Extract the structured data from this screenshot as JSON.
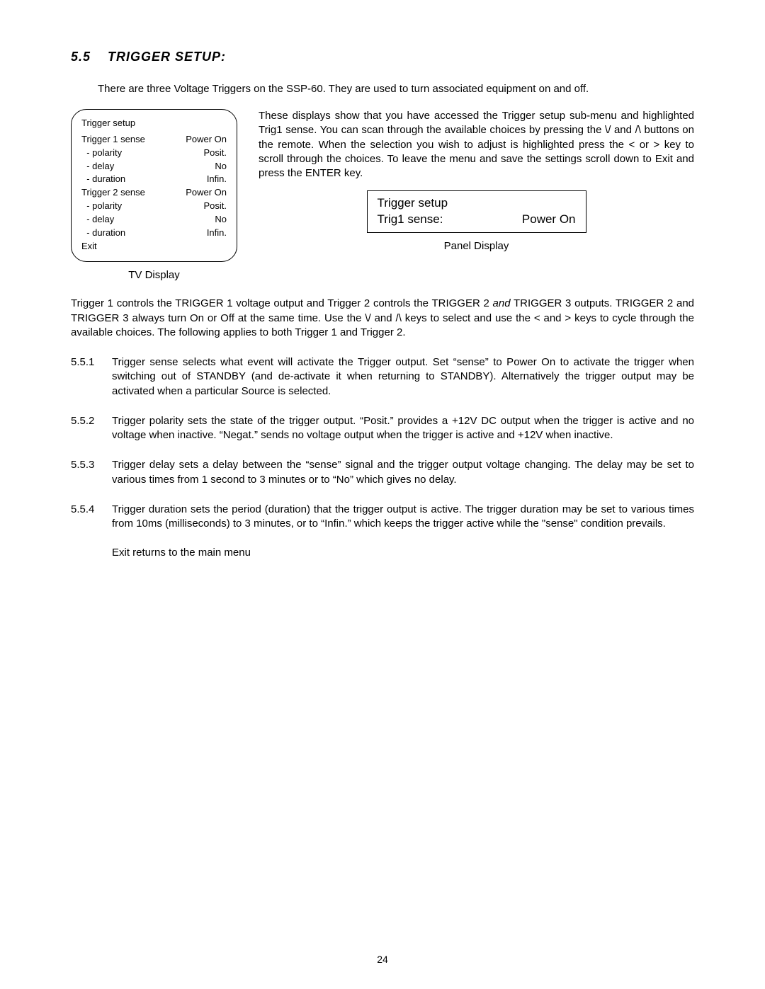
{
  "heading": {
    "num": "5.5",
    "title": "TRIGGER SETUP:"
  },
  "intro": "There are three Voltage Triggers on the SSP-60. They are used to turn associated equipment on and off.",
  "tvDisplay": {
    "title": "Trigger setup",
    "rows": [
      {
        "l": "Trigger 1 sense",
        "r": "Power On"
      },
      {
        "l": "  - polarity",
        "r": "Posit."
      },
      {
        "l": "  - delay",
        "r": "No"
      },
      {
        "l": "  - duration",
        "r": "Infin."
      },
      {
        "l": "Trigger 2 sense",
        "r": "Power On"
      },
      {
        "l": "  - polarity",
        "r": "Posit."
      },
      {
        "l": "  - delay",
        "r": "No"
      },
      {
        "l": "  - duration",
        "r": "Infin."
      },
      {
        "l": "Exit",
        "r": ""
      }
    ],
    "caption": "TV Display"
  },
  "rightPara": "These displays show that you have accessed the Trigger setup sub-menu and highlighted Trig1 sense.  You can scan through the available choices by pressing the \\/ and /\\ buttons on the remote. When the selection you wish to adjust is highlighted press the <  or >  key to scroll through the choices. To leave the menu and save the settings scroll down to Exit and press the ENTER key.",
  "panelDisplay": {
    "line1": "Trigger setup",
    "line2l": "Trig1 sense:",
    "line2r": "Power On",
    "caption": "Panel Display"
  },
  "bodyPara": {
    "pre": "Trigger 1 controls the TRIGGER 1 voltage output and Trigger 2 controls the TRIGGER 2 ",
    "italic": "and",
    "post": " TRIGGER 3 outputs. TRIGGER 2 and TRIGGER 3 always turn On or Off at the same time. Use the \\/ and /\\ keys to select and use the <  and >  keys to cycle through the available choices. The following applies to both Trigger 1 and Trigger 2."
  },
  "subs": [
    {
      "num": "5.5.1",
      "text": "Trigger sense selects what event will activate the Trigger output. Set “sense” to Power On to activate the trigger when switching out of STANDBY (and de-activate it when returning to STANDBY). Alternatively the trigger output may be activated when a particular Source is selected."
    },
    {
      "num": "5.5.2",
      "text": "Trigger polarity sets the state of the trigger output. “Posit.” provides a +12V DC output when the trigger is active and no voltage when inactive. “Negat.” sends no voltage output when the trigger is active and +12V when inactive."
    },
    {
      "num": "5.5.3",
      "text": "Trigger delay sets a delay between the “sense” signal and the trigger output voltage changing. The delay may be set to various times from 1 second to 3 minutes or to “No” which gives no delay."
    },
    {
      "num": "5.5.4",
      "text": "Trigger duration sets the period (duration) that the trigger output is active. The trigger duration may be set to various times from 10ms (milliseconds) to 3 minutes, or to “Infin.” which keeps the trigger active while the \"sense\" condition prevails."
    }
  ],
  "exit": "Exit returns to the main menu",
  "pageNum": "24"
}
